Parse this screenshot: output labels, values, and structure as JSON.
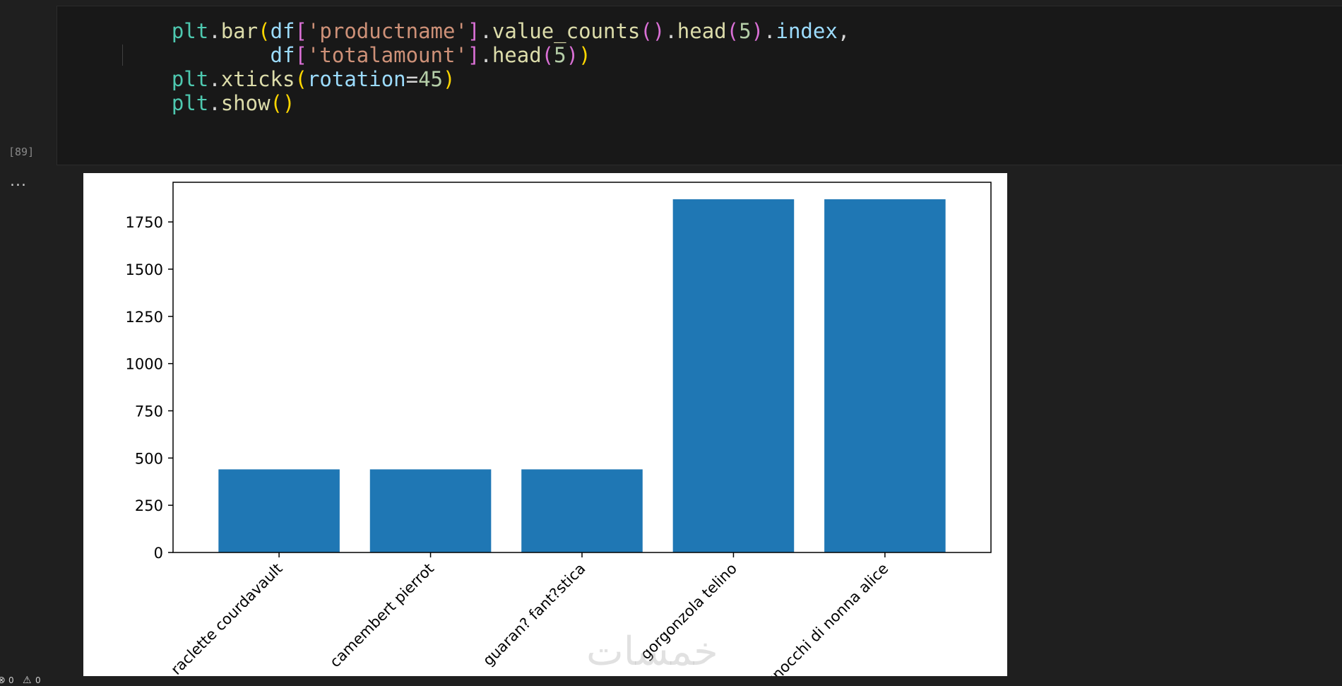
{
  "cell": {
    "execution_count": "[89]",
    "output_prompt": "...",
    "code_lines": [
      [
        {
          "t": "    ",
          "c": ""
        },
        {
          "t": "plt",
          "c": "mod"
        },
        {
          "t": ".",
          "c": "op"
        },
        {
          "t": "bar",
          "c": "fn"
        },
        {
          "t": "(",
          "c": "p1"
        },
        {
          "t": "df",
          "c": "var"
        },
        {
          "t": "[",
          "c": "p2"
        },
        {
          "t": "'productname'",
          "c": "str"
        },
        {
          "t": "]",
          "c": "p2"
        },
        {
          "t": ".",
          "c": "op"
        },
        {
          "t": "value_counts",
          "c": "fn"
        },
        {
          "t": "()",
          "c": "p2"
        },
        {
          "t": ".",
          "c": "op"
        },
        {
          "t": "head",
          "c": "fn"
        },
        {
          "t": "(",
          "c": "p2"
        },
        {
          "t": "5",
          "c": "num"
        },
        {
          "t": ")",
          "c": "p2"
        },
        {
          "t": ".",
          "c": "op"
        },
        {
          "t": "index",
          "c": "var"
        },
        {
          "t": ",",
          "c": "op"
        }
      ],
      [
        {
          "t": "            ",
          "c": ""
        },
        {
          "t": "df",
          "c": "var"
        },
        {
          "t": "[",
          "c": "p2"
        },
        {
          "t": "'totalamount'",
          "c": "str"
        },
        {
          "t": "]",
          "c": "p2"
        },
        {
          "t": ".",
          "c": "op"
        },
        {
          "t": "head",
          "c": "fn"
        },
        {
          "t": "(",
          "c": "p2"
        },
        {
          "t": "5",
          "c": "num"
        },
        {
          "t": ")",
          "c": "p2"
        },
        {
          "t": ")",
          "c": "p1"
        }
      ],
      [
        {
          "t": "    ",
          "c": ""
        },
        {
          "t": "plt",
          "c": "mod"
        },
        {
          "t": ".",
          "c": "op"
        },
        {
          "t": "xticks",
          "c": "fn"
        },
        {
          "t": "(",
          "c": "p1"
        },
        {
          "t": "rotation",
          "c": "var"
        },
        {
          "t": "=",
          "c": "op"
        },
        {
          "t": "45",
          "c": "num"
        },
        {
          "t": ")",
          "c": "p1"
        }
      ],
      [
        {
          "t": "    ",
          "c": ""
        },
        {
          "t": "plt",
          "c": "mod"
        },
        {
          "t": ".",
          "c": "op"
        },
        {
          "t": "show",
          "c": "fn"
        },
        {
          "t": "()",
          "c": "p1"
        }
      ]
    ]
  },
  "chart_data": {
    "type": "bar",
    "categories": [
      "raclette courdavault",
      "camembert pierrot",
      "guaran? fant?stica",
      "gorgonzola telino",
      "gnocchi di nonna alice"
    ],
    "values": [
      440,
      440,
      440,
      1870,
      1870
    ],
    "ylim": [
      0,
      1960
    ],
    "yticks": [
      0,
      250,
      500,
      750,
      1000,
      1250,
      1500,
      1750
    ],
    "bar_color": "#1f77b4",
    "grid": false,
    "xtick_rotation": 45
  },
  "status_bar": {
    "errors": "0",
    "warnings": "0",
    "warning_icon": "warning-icon"
  },
  "watermark": "خمسات"
}
